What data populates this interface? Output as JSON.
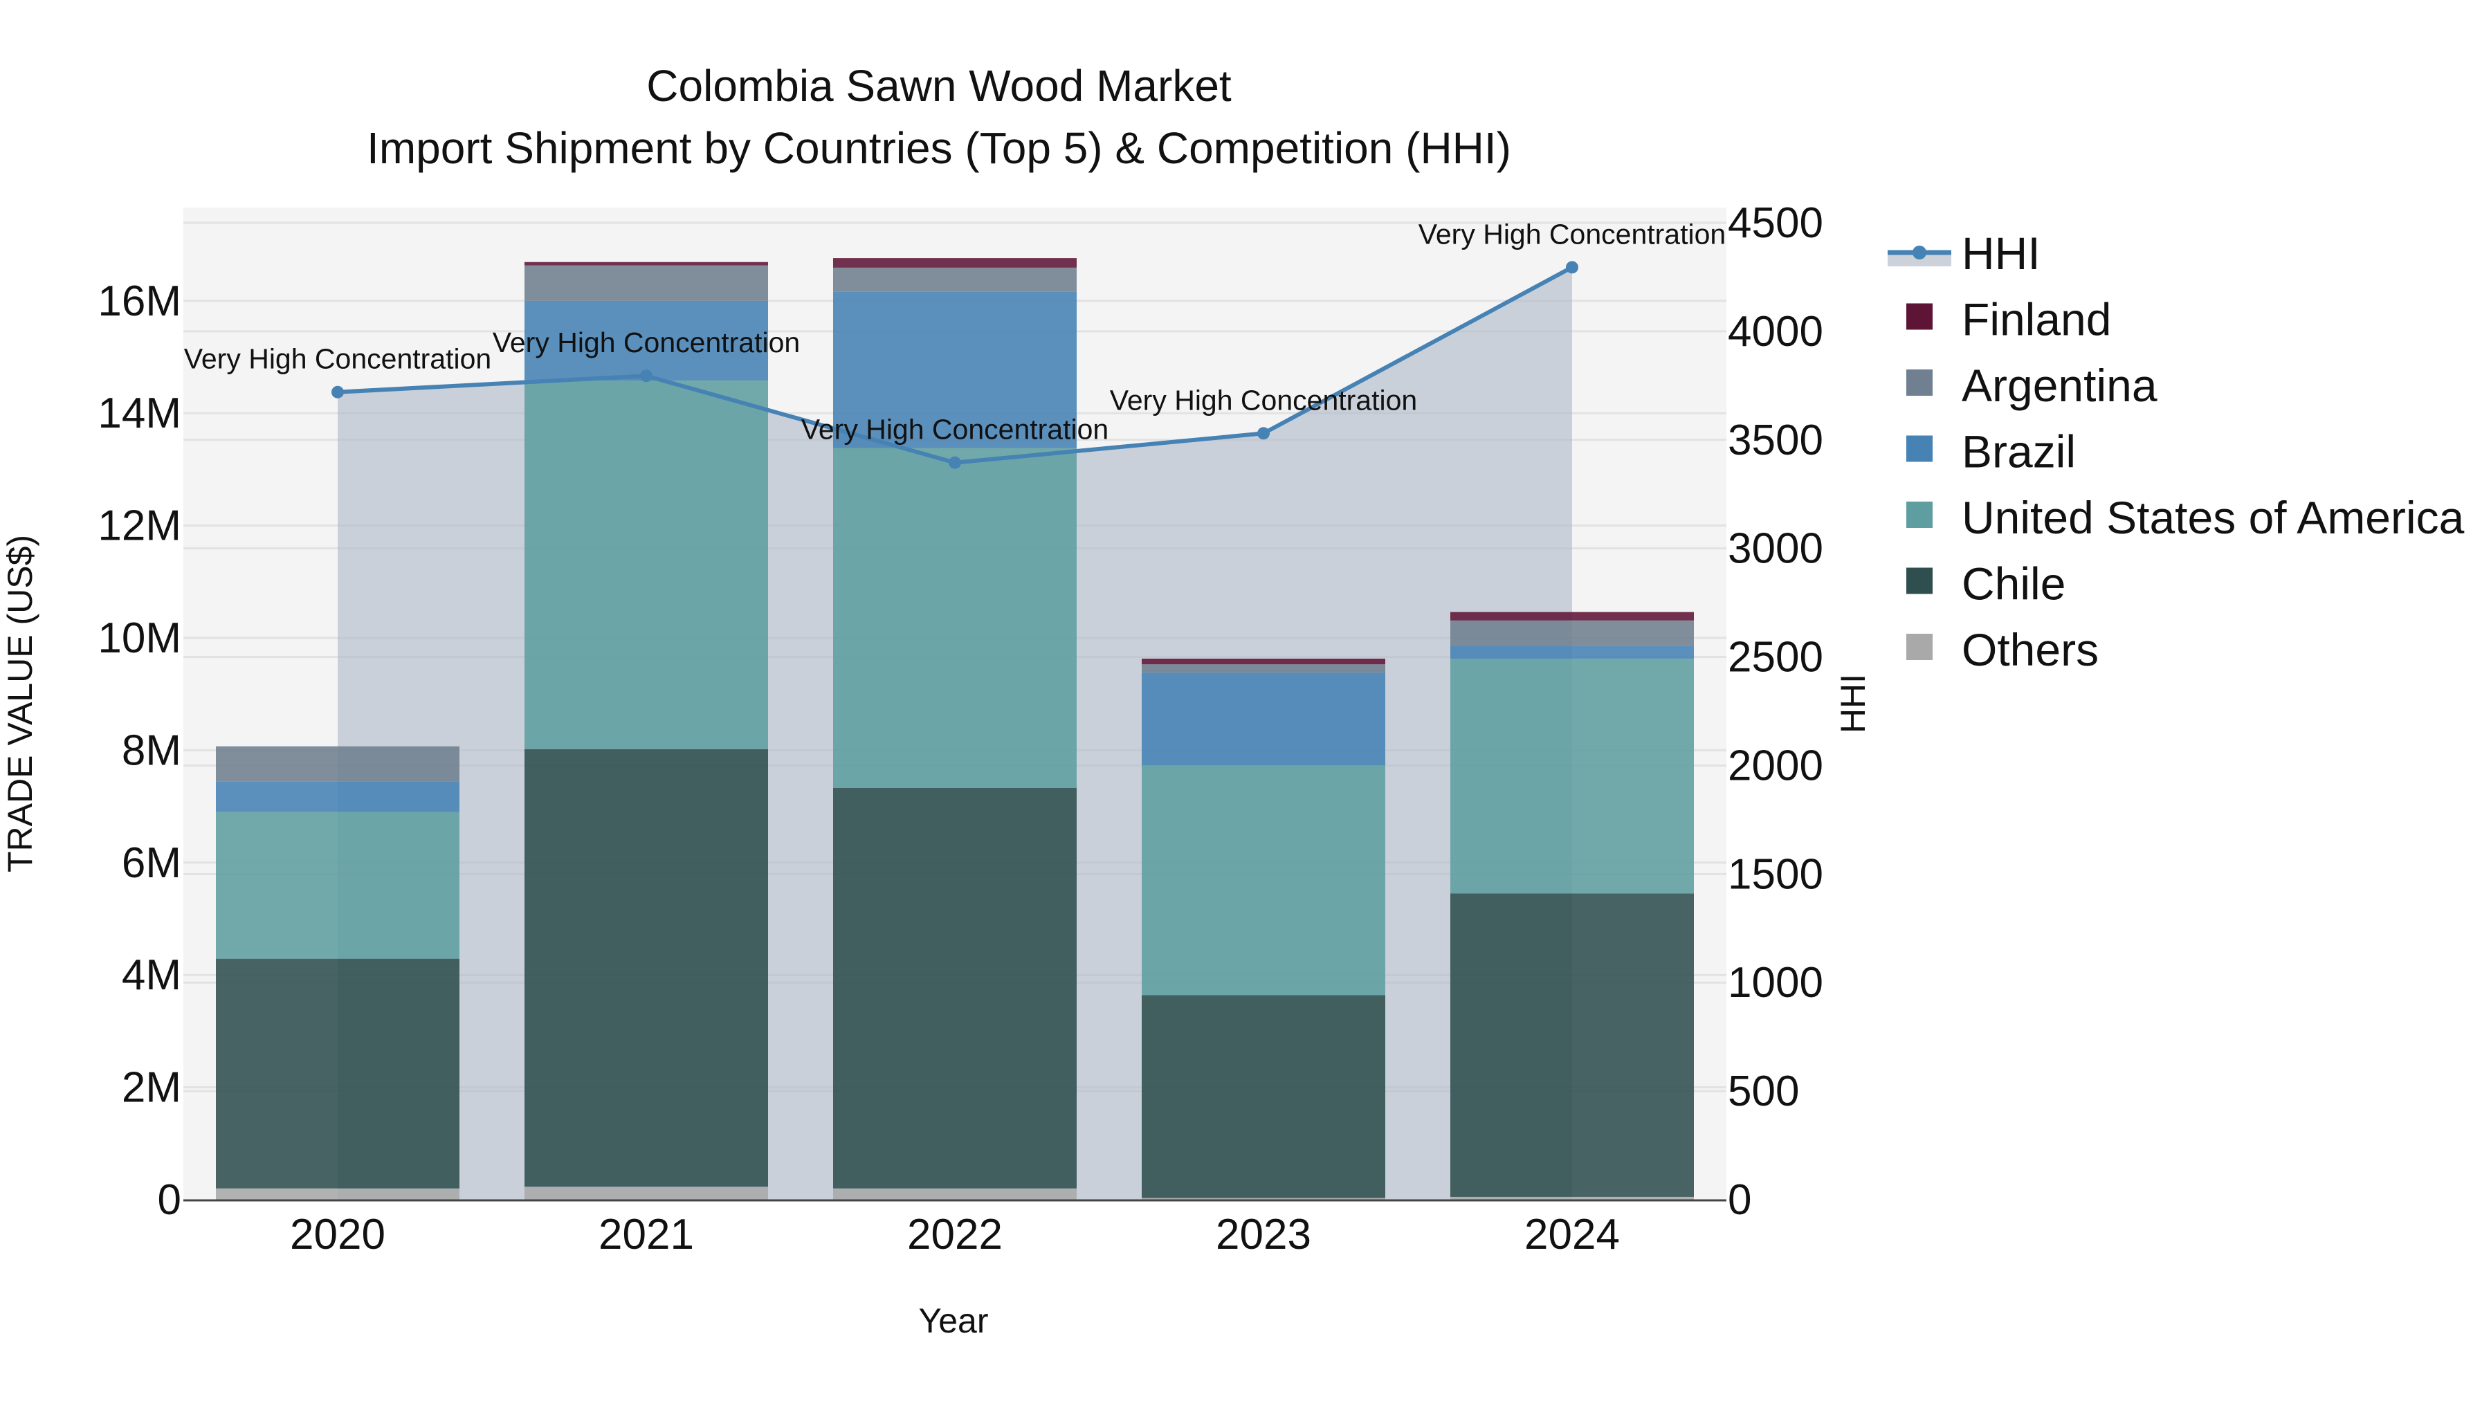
{
  "title": {
    "line1": "Colombia Sawn Wood Market",
    "line2": "Import Shipment by Countries (Top 5) & Competition (HHI)"
  },
  "axes": {
    "x_title": "Year",
    "y_left_title": "TRADE VALUE (US$)",
    "y_right_title": "HHI",
    "y_left_ticks": [
      "0",
      "2M",
      "4M",
      "6M",
      "8M",
      "10M",
      "12M",
      "14M",
      "16M"
    ],
    "y_right_ticks": [
      "0",
      "500",
      "1000",
      "1500",
      "2000",
      "2500",
      "3000",
      "3500",
      "4000",
      "4500"
    ],
    "x_ticks": [
      "2020",
      "2021",
      "2022",
      "2023",
      "2024"
    ]
  },
  "legend": {
    "items": [
      {
        "label": "HHI",
        "color": "#4682b4",
        "type": "line"
      },
      {
        "label": "Finland",
        "color": "#5e1535",
        "type": "box"
      },
      {
        "label": "Argentina",
        "color": "#708090",
        "type": "box"
      },
      {
        "label": "Brazil",
        "color": "#4682b4",
        "type": "box"
      },
      {
        "label": "United States of America",
        "color": "#5f9ea0",
        "type": "box"
      },
      {
        "label": "Chile",
        "color": "#2f4f4f",
        "type": "box"
      },
      {
        "label": "Others",
        "color": "#a9a9a9",
        "type": "box"
      }
    ]
  },
  "annotations": [
    {
      "year": "2020",
      "text": "Very High Concentration"
    },
    {
      "year": "2021",
      "text": "Very High Concentration"
    },
    {
      "year": "2022",
      "text": "Very High Concentration"
    },
    {
      "year": "2023",
      "text": "Very High Concentration"
    },
    {
      "year": "2024",
      "text": "Very High Concentration"
    }
  ],
  "chart_data": {
    "type": "bar",
    "stacked": true,
    "title": "Colombia Sawn Wood Market — Import Shipment by Countries (Top 5) & Competition (HHI)",
    "xlabel": "Year",
    "ylabel": "TRADE VALUE (US$)",
    "y2label": "HHI",
    "categories": [
      "2020",
      "2021",
      "2022",
      "2023",
      "2024"
    ],
    "ylim": [
      0,
      17400000
    ],
    "y2lim": [
      0,
      4560
    ],
    "series": [
      {
        "name": "Others",
        "color": "#a9a9a9",
        "values": [
          200000,
          230000,
          200000,
          30000,
          50000
        ]
      },
      {
        "name": "Chile",
        "color": "#2f4f4f",
        "values": [
          4090000,
          7790000,
          7130000,
          3610000,
          5400000
        ]
      },
      {
        "name": "United States of America",
        "color": "#5f9ea0",
        "values": [
          2610000,
          6560000,
          6050000,
          4090000,
          4180000
        ]
      },
      {
        "name": "Brazil",
        "color": "#4682b4",
        "values": [
          540000,
          1420000,
          2780000,
          1650000,
          230000
        ]
      },
      {
        "name": "Argentina",
        "color": "#708090",
        "values": [
          630000,
          630000,
          430000,
          150000,
          450000
        ]
      },
      {
        "name": "Finland",
        "color": "#5e1535",
        "values": [
          0,
          60000,
          170000,
          100000,
          150000
        ]
      }
    ],
    "line_series": {
      "name": "HHI",
      "axis": "right",
      "color": "#4682b4",
      "fill": "tozeroy",
      "values": [
        3720,
        3795,
        3395,
        3530,
        4295
      ],
      "labels": [
        "Very High Concentration",
        "Very High Concentration",
        "Very High Concentration",
        "Very High Concentration",
        "Very High Concentration"
      ]
    },
    "grid": true,
    "legend_position": "right"
  }
}
